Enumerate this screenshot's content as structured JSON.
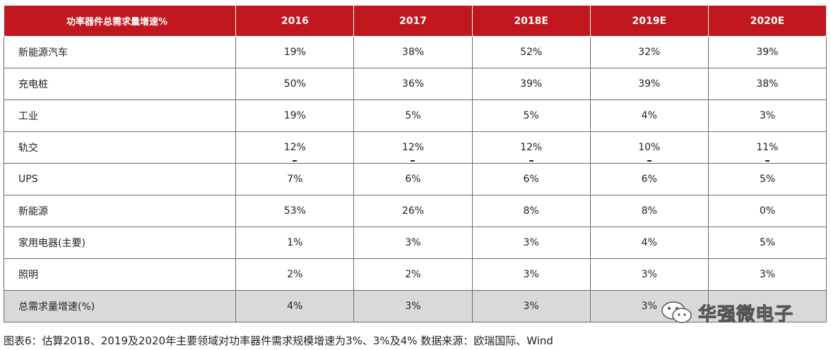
{
  "table": {
    "header": [
      "功率器件总需求量增速%",
      "2016",
      "2017",
      "2018E",
      "2019E",
      "2020E"
    ],
    "rows": [
      {
        "label": "新能源汽车",
        "values": [
          "19%",
          "38%",
          "52%",
          "32%",
          "39%"
        ]
      },
      {
        "label": "充电桩",
        "values": [
          "50%",
          "36%",
          "39%",
          "39%",
          "38%"
        ]
      },
      {
        "label": "工业",
        "values": [
          "19%",
          "5%",
          "5%",
          "4%",
          "3%"
        ]
      },
      {
        "label": "轨交",
        "values": [
          "12%",
          "12%",
          "12%",
          "10%",
          "11%"
        ]
      },
      {
        "label": "UPS",
        "values": [
          "7%",
          "6%",
          "6%",
          "6%",
          "5%"
        ]
      },
      {
        "label": "新能源",
        "values": [
          "53%",
          "26%",
          "8%",
          "8%",
          "0%"
        ]
      },
      {
        "label": "家用电器(主要)",
        "values": [
          "1%",
          "3%",
          "3%",
          "4%",
          "5%"
        ]
      },
      {
        "label": "照明",
        "values": [
          "2%",
          "2%",
          "3%",
          "3%",
          "3%"
        ]
      },
      {
        "label": "总需求量增速(%)",
        "values": [
          "4%",
          "3%",
          "3%",
          "3%",
          ""
        ]
      }
    ]
  },
  "caption": "图表6：估算2018、2019及2020年主要领域对功率器件需求规模增速为3%、3%及4%   数据来源：欧瑞国际、Wind",
  "watermark": {
    "text": "华强微电子",
    "icon": "wechat-icon"
  },
  "colors": {
    "header_bg": "#c0181e",
    "total_row_bg": "#d9d9d9"
  }
}
